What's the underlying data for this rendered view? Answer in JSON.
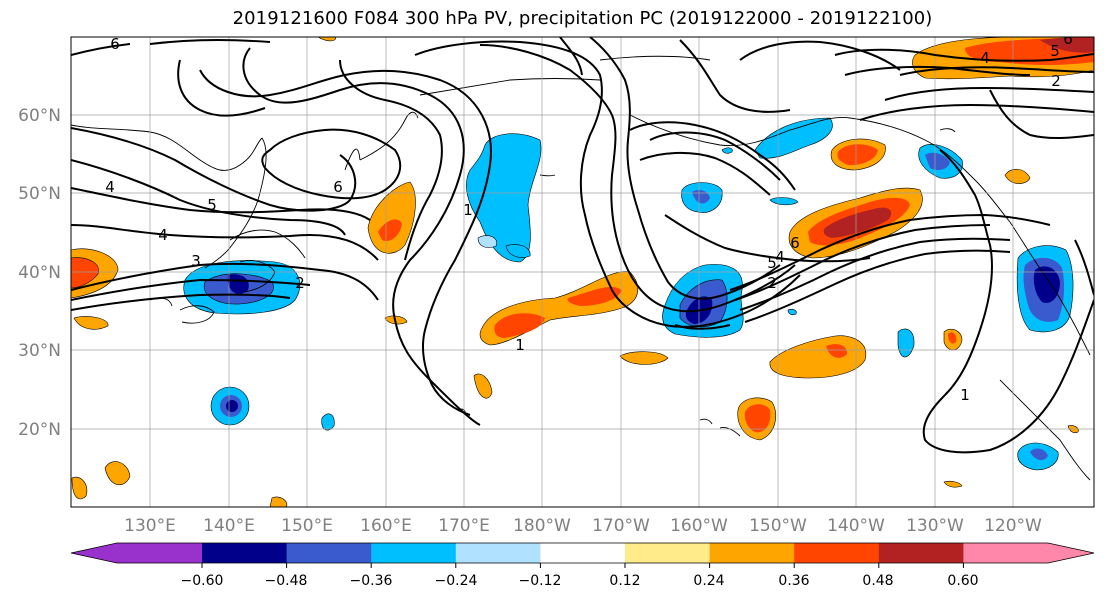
{
  "title": "2019121600 F084 300 hPa PV, precipitation PC (2019122000 - 2019122100)",
  "map": {
    "lat_labels": [
      "60°N",
      "50°N",
      "40°N",
      "30°N",
      "20°N"
    ],
    "lon_labels": [
      "130°E",
      "140°E",
      "150°E",
      "160°E",
      "170°E",
      "180°W",
      "170°W",
      "160°W",
      "150°W",
      "140°W",
      "130°W",
      "120°W"
    ],
    "label_color": "#808080",
    "contour_labels": [
      "6",
      "4",
      "5",
      "6",
      "4",
      "3",
      "2",
      "1",
      "1",
      "6",
      "5",
      "4",
      "2",
      "4",
      "5",
      "6",
      "2",
      "1"
    ]
  },
  "colorbar": {
    "ticks": [
      "−0.60",
      "−0.48",
      "−0.36",
      "−0.24",
      "−0.12",
      "0.12",
      "0.24",
      "0.36",
      "0.48",
      "0.60"
    ],
    "colors": [
      "#9932CC",
      "#00008B",
      "#3A5BCD",
      "#00BFFF",
      "#B0E2FF",
      "#FFFFFF",
      "#FFEB8A",
      "#FFA500",
      "#FF4500",
      "#B22222",
      "#FF88AA"
    ]
  }
}
